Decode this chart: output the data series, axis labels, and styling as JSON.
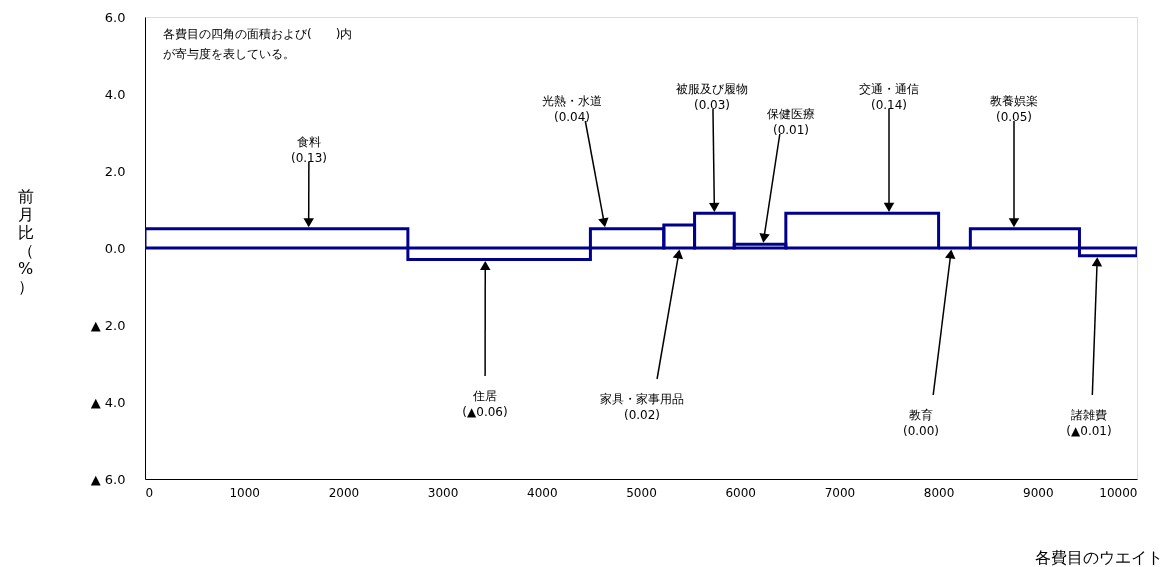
{
  "chart_data": {
    "type": "histogram",
    "bins": [
      0,
      2650,
      4490,
      5230,
      5540,
      5940,
      6460,
      8000,
      8320,
      9420,
      10000
    ],
    "series": [
      {
        "color": "#00008b",
        "values": [
          0.5,
          -0.3,
          0.5,
          0.6,
          0.9,
          0.1,
          0.9,
          0.0,
          0.5,
          -0.2
        ]
      }
    ],
    "xlim": [
      0,
      10000
    ],
    "xticks": [
      0,
      1000,
      2000,
      3000,
      4000,
      5000,
      6000,
      7000,
      8000,
      9000,
      10000
    ],
    "ylim": [
      -6,
      6
    ],
    "yticks": [
      {
        "value": -6,
        "label": "▲ 6.0"
      },
      {
        "value": -4,
        "label": "▲ 4.0"
      },
      {
        "value": -2,
        "label": "▲ 2.0"
      },
      {
        "value": 0,
        "label": "0.0"
      },
      {
        "value": 2,
        "label": "2.0"
      },
      {
        "value": 4,
        "label": "4.0"
      },
      {
        "value": 6,
        "label": "6.0"
      }
    ],
    "xlabel": "各費目のウエイト",
    "ylabel": "前月比（%）",
    "grid": false,
    "annotations": [
      "各費目の四角の面積および(　　)内",
      "が寄与度を表している。",
      {
        "text": "食料\n(0.13)",
        "x": 1650,
        "y": 0.5
      },
      {
        "text": "住居\n(▲0.06)",
        "x": 3430,
        "y": -0.3
      },
      {
        "text": "光熱・水道\n(0.04)",
        "x": 4640,
        "y": 0.5
      },
      {
        "text": "家具・家事用品\n(0.02)",
        "x": 5390,
        "y": 0
      },
      {
        "text": "被服及び履物\n(0.03)",
        "x": 5740,
        "y": 0.9
      },
      {
        "text": "保健医療\n(0.01)",
        "x": 6230,
        "y": 0.1
      },
      {
        "text": "交通・通信\n(0.14)",
        "x": 7500,
        "y": 0.9
      },
      {
        "text": "教育\n(0.00)",
        "x": 8130,
        "y": 0
      },
      {
        "text": "教養娯楽\n(0.05)",
        "x": 8760,
        "y": 0.5
      },
      {
        "text": "諸雑費\n(▲0.01)",
        "x": 9600,
        "y": -0.2
      }
    ]
  }
}
